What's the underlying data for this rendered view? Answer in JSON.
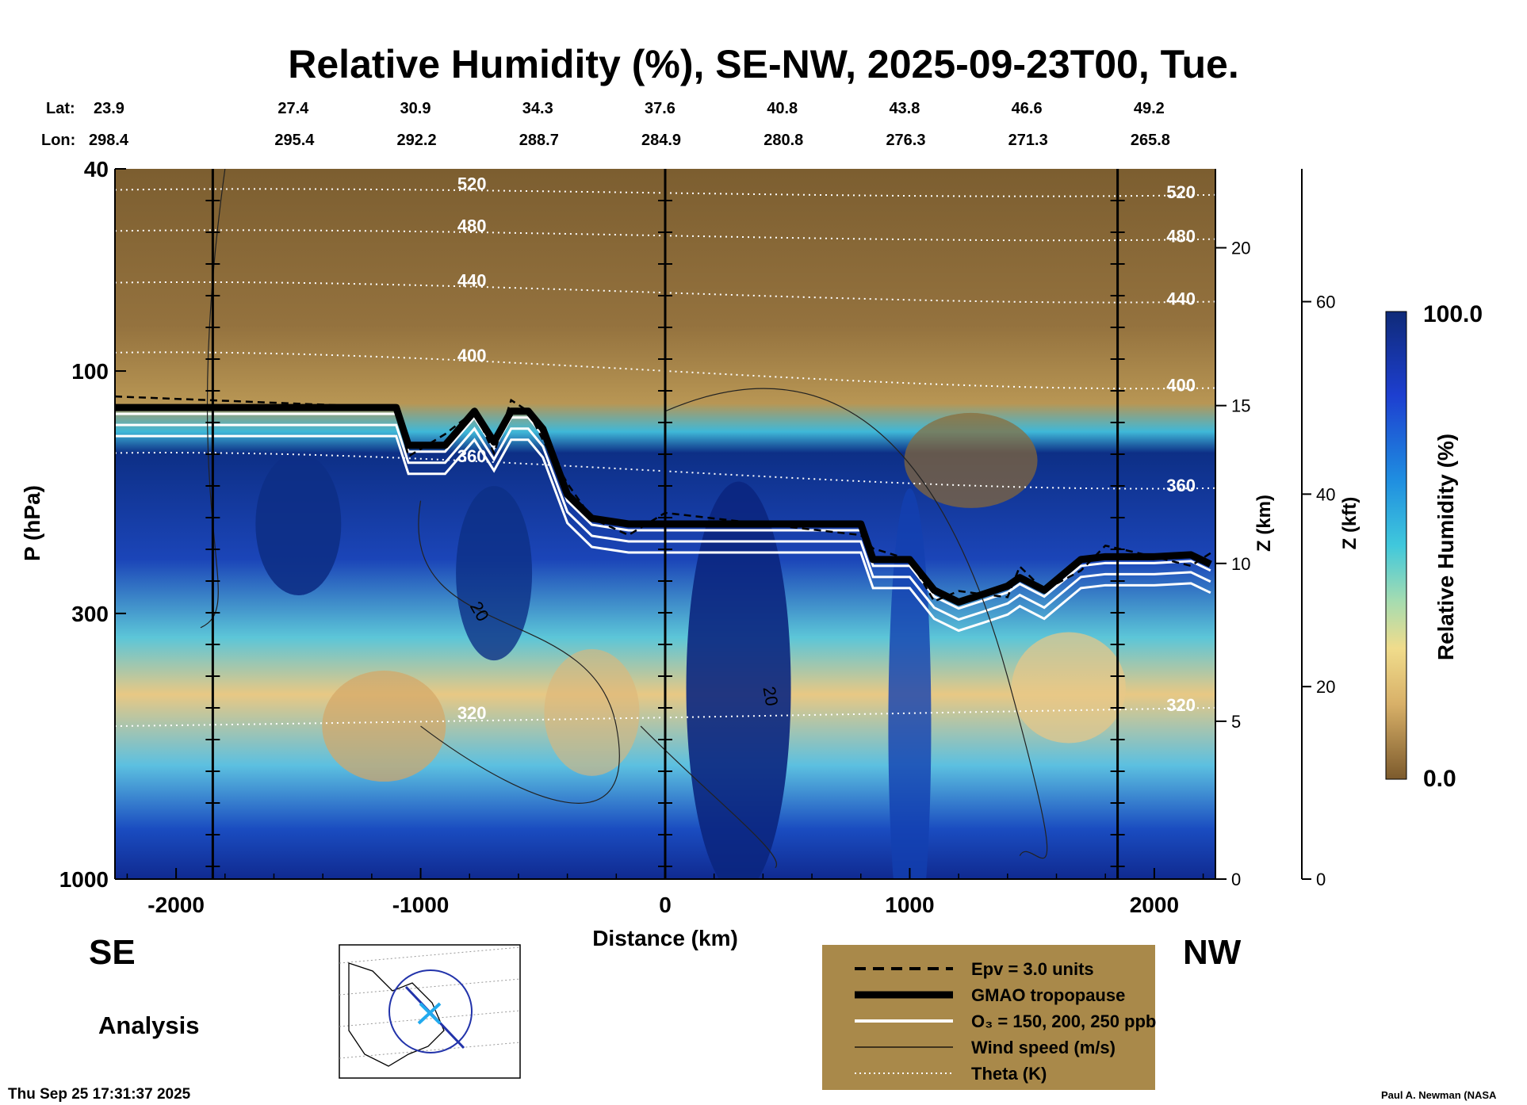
{
  "chart_data": {
    "type": "heatmap",
    "title": "Relative Humidity (%), SE-NW, 2025-09-23T00, Tue.",
    "xlabel": "Distance (km)",
    "ylabel": "P (hPa)",
    "y2label": "Z (km)",
    "y3label": "Z (kft)",
    "colorbar_label": "Relative Humidity (%)",
    "colorbar_range": [
      0.0,
      100.0
    ],
    "colorbar_ticks": [
      "100.0",
      "0.0"
    ],
    "xlim": [
      -2250,
      2250
    ],
    "ylim_hpa": [
      1000,
      40
    ],
    "x_ticks": [
      -2000,
      -1000,
      0,
      1000,
      2000
    ],
    "x_tick_labels": [
      "-2000",
      "-1000",
      "0",
      "1000",
      "2000"
    ],
    "p_ticks": [
      40,
      100,
      300,
      1000
    ],
    "p_tick_labels": [
      "40",
      "100",
      "300",
      "1000"
    ],
    "z_km_ticks": [
      0,
      5,
      10,
      15,
      20
    ],
    "z_km_tick_labels": [
      "0",
      "5",
      "10",
      "15",
      "20"
    ],
    "z_kft_ticks": [
      0,
      20,
      40,
      60
    ],
    "z_kft_tick_labels": [
      "0",
      "20",
      "40",
      "60"
    ],
    "lat_label": "Lat:",
    "lon_label": "Lon:",
    "lat": [
      "23.9",
      "27.4",
      "30.9",
      "34.3",
      "37.6",
      "40.8",
      "43.8",
      "46.6",
      "49.2"
    ],
    "lon": [
      "298.4",
      "295.4",
      "292.2",
      "288.7",
      "284.9",
      "280.8",
      "276.3",
      "271.3",
      "265.8"
    ],
    "tropopause_hpa": {
      "x": [
        -2250,
        -1100,
        -1050,
        -900,
        -780,
        -700,
        -630,
        -560,
        -500,
        -400,
        -300,
        -150,
        0,
        400,
        800,
        850,
        1000,
        1100,
        1200,
        1300,
        1400,
        1450,
        1550,
        1700,
        1800,
        2000,
        2150,
        2230
      ],
      "p": [
        118,
        118,
        140,
        140,
        120,
        138,
        120,
        120,
        130,
        175,
        195,
        200,
        200,
        200,
        200,
        235,
        235,
        270,
        285,
        275,
        265,
        255,
        270,
        235,
        232,
        232,
        230,
        240
      ]
    },
    "theta_levels_K": [
      {
        "value": 320,
        "label": "320",
        "p_left": 500,
        "p_right": 460
      },
      {
        "value": 360,
        "label": "360",
        "p_left": 145,
        "p_right": 170
      },
      {
        "value": 400,
        "label": "400",
        "p_left": 92,
        "p_right": 108
      },
      {
        "value": 440,
        "label": "440",
        "p_left": 67,
        "p_right": 73
      },
      {
        "value": 480,
        "label": "480",
        "p_left": 53,
        "p_right": 55
      },
      {
        "value": 520,
        "label": "520",
        "p_left": 44,
        "p_right": 45
      }
    ],
    "wind_speed_labels": [
      "20",
      "20"
    ],
    "legend": [
      {
        "style": "dashed",
        "label": "Epv = 3.0 units"
      },
      {
        "style": "thick-black",
        "label": "GMAO tropopause"
      },
      {
        "style": "white",
        "label": "O₃ = 150, 200, 250 ppb"
      },
      {
        "style": "thin-black",
        "label": "Wind speed (m/s)"
      },
      {
        "style": "dotted",
        "label": "Theta (K)"
      }
    ],
    "legend_position": "bottom-right"
  },
  "side_left": "SE",
  "side_right": "NW",
  "analysis_label": "Analysis",
  "timestamp": "Thu Sep 25 17:31:37 2025",
  "credit": "Paul A. Newman (NASA"
}
